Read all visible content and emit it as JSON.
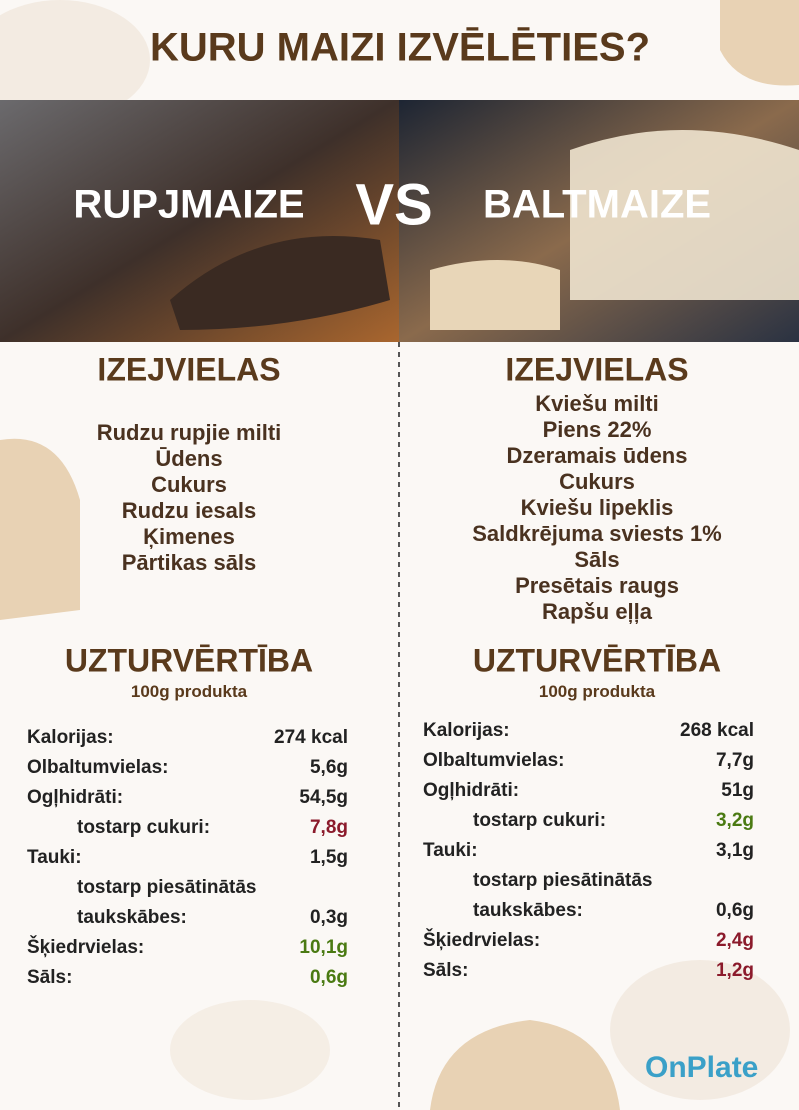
{
  "title": "KURU MAIZI IZVĒLĒTIES?",
  "vs": "VS",
  "columns": [
    {
      "name": "RUPJMAIZE",
      "ingredients_heading": "IZEJVIELAS",
      "ingredients": [
        "Rudzu rupjie milti",
        "Ūdens",
        "Cukurs",
        "Rudzu iesals",
        "Ķimenes",
        "Pārtikas sāls"
      ],
      "nutrition_heading": "UZTURVĒRTĪBA",
      "nutrition_basis": "100g produkta",
      "nutrition": [
        {
          "label": "Kalorijas:",
          "value": "274 kcal"
        },
        {
          "label": "Olbaltumvielas:",
          "value": "5,6g"
        },
        {
          "label": "Ogļhidrāti:",
          "value": "54,5g",
          "sub": [
            {
              "label": "tostarp cukuri:",
              "value": "7,8g",
              "color": "#8b1a2b"
            }
          ]
        },
        {
          "label": "Tauki:",
          "value": "1,5g",
          "sub": [
            {
              "label": [
                "tostarp piesātinātās",
                "taukskābes:"
              ],
              "value": "0,3g"
            }
          ]
        },
        {
          "label": "Šķiedrvielas:",
          "value": "10,1g",
          "color": "#4a7a12"
        },
        {
          "label": "Sāls:",
          "value": "0,6g",
          "color": "#4a7a12"
        }
      ]
    },
    {
      "name": "BALTMAIZE",
      "ingredients_heading": "IZEJVIELAS",
      "ingredients": [
        "Kviešu milti",
        "Piens 22%",
        "Dzeramais ūdens",
        "Cukurs",
        "Kviešu lipeklis",
        "Saldkrējuma sviests 1%",
        "Sāls",
        "Presētais raugs",
        "Rapšu eļļa"
      ],
      "nutrition_heading": "UZTURVĒRTĪBA",
      "nutrition_basis": "100g produkta",
      "nutrition": [
        {
          "label": "Kalorijas:",
          "value": "268 kcal"
        },
        {
          "label": "Olbaltumvielas:",
          "value": "7,7g"
        },
        {
          "label": "Ogļhidrāti:",
          "value": "51g",
          "sub": [
            {
              "label": "tostarp cukuri:",
              "value": "3,2g",
              "color": "#4a7a12"
            }
          ]
        },
        {
          "label": "Tauki:",
          "value": "3,1g",
          "sub": [
            {
              "label": [
                "tostarp piesātinātās",
                "taukskābes:"
              ],
              "value": "0,6g"
            }
          ]
        },
        {
          "label": "Šķiedrvielas:",
          "value": "2,4g",
          "color": "#8b1a2b"
        },
        {
          "label": "Sāls:",
          "value": "1,2g",
          "color": "#8b1a2b"
        }
      ]
    }
  ],
  "logo": "OnPlate"
}
